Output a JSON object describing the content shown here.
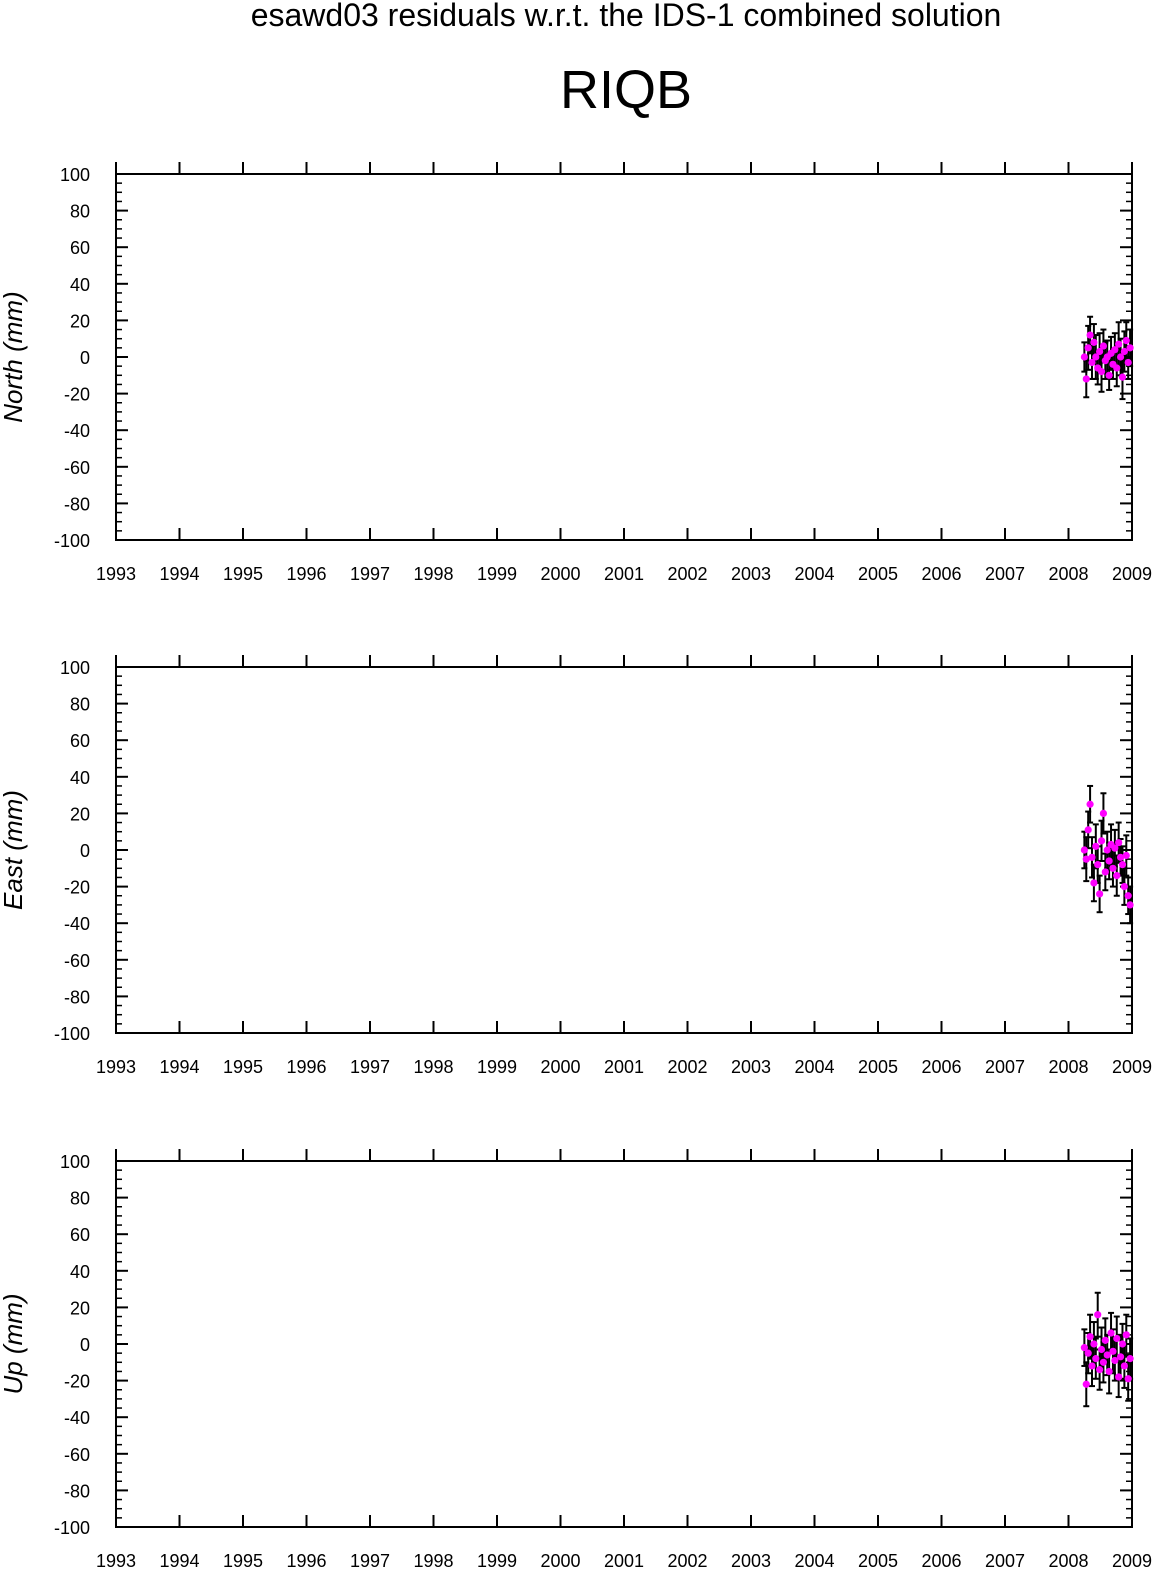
{
  "figure": {
    "suptitle": "esawd03 residuals w.r.t. the IDS-1 combined solution",
    "title": "RIQB"
  },
  "colors": {
    "point": "#ff00ff",
    "errorbar": "#000000",
    "axis": "#000000",
    "background": "#ffffff"
  },
  "chart_data": [
    {
      "type": "scatter",
      "title": "",
      "xlabel": "",
      "ylabel": "North (mm)",
      "xlim": [
        1993,
        2009
      ],
      "ylim": [
        -100,
        100
      ],
      "x_ticks": [
        "1993",
        "1994",
        "1995",
        "1996",
        "1997",
        "1998",
        "1999",
        "2000",
        "2001",
        "2002",
        "2003",
        "2004",
        "2005",
        "2006",
        "2007",
        "2008",
        "2009"
      ],
      "y_ticks": [
        "100",
        "80",
        "60",
        "40",
        "20",
        "0",
        "-20",
        "-40",
        "-60",
        "-80",
        "-100"
      ],
      "grid": false,
      "error_bars": true,
      "points": [
        {
          "x": 2008.25,
          "y": 0,
          "err": 8
        },
        {
          "x": 2008.28,
          "y": -12,
          "err": 10
        },
        {
          "x": 2008.31,
          "y": 5,
          "err": 12
        },
        {
          "x": 2008.34,
          "y": 12,
          "err": 10
        },
        {
          "x": 2008.37,
          "y": -3,
          "err": 9
        },
        {
          "x": 2008.4,
          "y": 8,
          "err": 10
        },
        {
          "x": 2008.43,
          "y": 0,
          "err": 12
        },
        {
          "x": 2008.46,
          "y": -6,
          "err": 9
        },
        {
          "x": 2008.49,
          "y": 3,
          "err": 10
        },
        {
          "x": 2008.52,
          "y": -8,
          "err": 11
        },
        {
          "x": 2008.55,
          "y": 6,
          "err": 9
        },
        {
          "x": 2008.58,
          "y": -2,
          "err": 10
        },
        {
          "x": 2008.61,
          "y": 0,
          "err": 9
        },
        {
          "x": 2008.64,
          "y": -10,
          "err": 8
        },
        {
          "x": 2008.67,
          "y": 2,
          "err": 9
        },
        {
          "x": 2008.7,
          "y": -4,
          "err": 8
        },
        {
          "x": 2008.73,
          "y": 4,
          "err": 9
        },
        {
          "x": 2008.76,
          "y": -6,
          "err": 10
        },
        {
          "x": 2008.79,
          "y": 7,
          "err": 12
        },
        {
          "x": 2008.82,
          "y": 0,
          "err": 10
        },
        {
          "x": 2008.85,
          "y": -11,
          "err": 12
        },
        {
          "x": 2008.88,
          "y": 3,
          "err": 11
        },
        {
          "x": 2008.91,
          "y": 9,
          "err": 10
        },
        {
          "x": 2008.94,
          "y": -3,
          "err": 9
        },
        {
          "x": 2008.97,
          "y": 5,
          "err": 10
        }
      ]
    },
    {
      "type": "scatter",
      "title": "",
      "xlabel": "",
      "ylabel": "East (mm)",
      "xlim": [
        1993,
        2009
      ],
      "ylim": [
        -100,
        100
      ],
      "x_ticks": [
        "1993",
        "1994",
        "1995",
        "1996",
        "1997",
        "1998",
        "1999",
        "2000",
        "2001",
        "2002",
        "2003",
        "2004",
        "2005",
        "2006",
        "2007",
        "2008",
        "2009"
      ],
      "y_ticks": [
        "100",
        "80",
        "60",
        "40",
        "20",
        "0",
        "-20",
        "-40",
        "-60",
        "-80",
        "-100"
      ],
      "grid": false,
      "error_bars": true,
      "points": [
        {
          "x": 2008.25,
          "y": 0,
          "err": 10
        },
        {
          "x": 2008.28,
          "y": -5,
          "err": 12
        },
        {
          "x": 2008.31,
          "y": 11,
          "err": 10
        },
        {
          "x": 2008.34,
          "y": 25,
          "err": 10
        },
        {
          "x": 2008.37,
          "y": -4,
          "err": 11
        },
        {
          "x": 2008.4,
          "y": -18,
          "err": 10
        },
        {
          "x": 2008.43,
          "y": 2,
          "err": 12
        },
        {
          "x": 2008.46,
          "y": -8,
          "err": 10
        },
        {
          "x": 2008.49,
          "y": -24,
          "err": 10
        },
        {
          "x": 2008.52,
          "y": 5,
          "err": 11
        },
        {
          "x": 2008.55,
          "y": 20,
          "err": 11
        },
        {
          "x": 2008.58,
          "y": -12,
          "err": 10
        },
        {
          "x": 2008.61,
          "y": 0,
          "err": 10
        },
        {
          "x": 2008.64,
          "y": -6,
          "err": 10
        },
        {
          "x": 2008.67,
          "y": 3,
          "err": 11
        },
        {
          "x": 2008.7,
          "y": -10,
          "err": 10
        },
        {
          "x": 2008.73,
          "y": 1,
          "err": 10
        },
        {
          "x": 2008.76,
          "y": -14,
          "err": 11
        },
        {
          "x": 2008.79,
          "y": 4,
          "err": 11
        },
        {
          "x": 2008.82,
          "y": -4,
          "err": 10
        },
        {
          "x": 2008.85,
          "y": -8,
          "err": 10
        },
        {
          "x": 2008.88,
          "y": -20,
          "err": 10
        },
        {
          "x": 2008.91,
          "y": -3,
          "err": 11
        },
        {
          "x": 2008.94,
          "y": -25,
          "err": 10
        },
        {
          "x": 2008.97,
          "y": -30,
          "err": 10
        }
      ]
    },
    {
      "type": "scatter",
      "title": "",
      "xlabel": "",
      "ylabel": "Up (mm)",
      "xlim": [
        1993,
        2009
      ],
      "ylim": [
        -100,
        100
      ],
      "x_ticks": [
        "1993",
        "1994",
        "1995",
        "1996",
        "1997",
        "1998",
        "1999",
        "2000",
        "2001",
        "2002",
        "2003",
        "2004",
        "2005",
        "2006",
        "2007",
        "2008",
        "2009"
      ],
      "y_ticks": [
        "100",
        "80",
        "60",
        "40",
        "20",
        "0",
        "-20",
        "-40",
        "-60",
        "-80",
        "-100"
      ],
      "grid": false,
      "error_bars": true,
      "points": [
        {
          "x": 2008.25,
          "y": -2,
          "err": 10
        },
        {
          "x": 2008.28,
          "y": -22,
          "err": 12
        },
        {
          "x": 2008.31,
          "y": -5,
          "err": 11
        },
        {
          "x": 2008.34,
          "y": 4,
          "err": 12
        },
        {
          "x": 2008.37,
          "y": -12,
          "err": 11
        },
        {
          "x": 2008.4,
          "y": 0,
          "err": 12
        },
        {
          "x": 2008.43,
          "y": -8,
          "err": 11
        },
        {
          "x": 2008.46,
          "y": 16,
          "err": 12
        },
        {
          "x": 2008.49,
          "y": -14,
          "err": 11
        },
        {
          "x": 2008.52,
          "y": -3,
          "err": 12
        },
        {
          "x": 2008.55,
          "y": -10,
          "err": 11
        },
        {
          "x": 2008.58,
          "y": 2,
          "err": 12
        },
        {
          "x": 2008.61,
          "y": -6,
          "err": 11
        },
        {
          "x": 2008.64,
          "y": -15,
          "err": 12
        },
        {
          "x": 2008.67,
          "y": 6,
          "err": 11
        },
        {
          "x": 2008.7,
          "y": -4,
          "err": 12
        },
        {
          "x": 2008.73,
          "y": -9,
          "err": 11
        },
        {
          "x": 2008.76,
          "y": 3,
          "err": 12
        },
        {
          "x": 2008.79,
          "y": -18,
          "err": 11
        },
        {
          "x": 2008.82,
          "y": -7,
          "err": 12
        },
        {
          "x": 2008.85,
          "y": 0,
          "err": 11
        },
        {
          "x": 2008.88,
          "y": -12,
          "err": 12
        },
        {
          "x": 2008.91,
          "y": 5,
          "err": 11
        },
        {
          "x": 2008.94,
          "y": -19,
          "err": 12
        },
        {
          "x": 2008.97,
          "y": -8,
          "err": 11
        }
      ]
    }
  ]
}
